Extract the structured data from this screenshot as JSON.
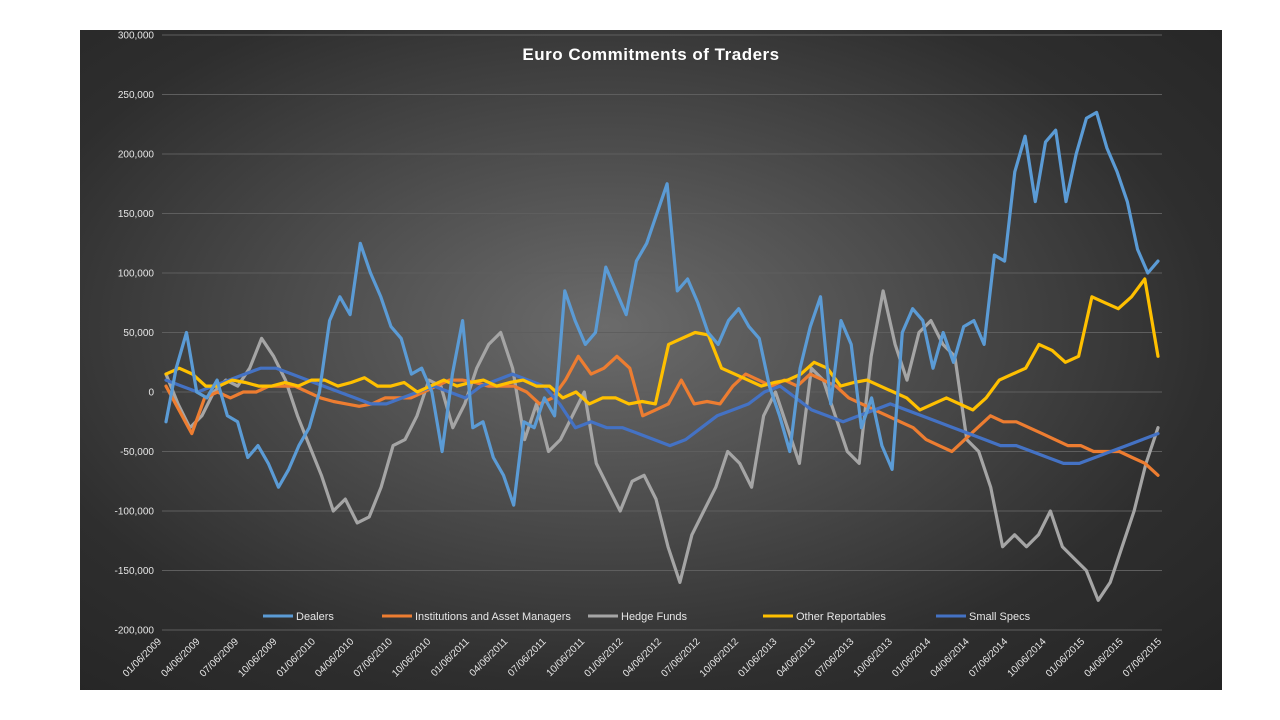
{
  "chart_data": {
    "type": "line",
    "title": "Euro  Commitments  of Traders",
    "xlabel": "",
    "ylabel": "",
    "ylim": [
      -200000,
      300000
    ],
    "yticks": [
      300000,
      250000,
      200000,
      150000,
      100000,
      50000,
      0,
      -50000,
      -100000,
      -150000,
      -200000
    ],
    "ytick_labels": [
      "300,000",
      "250,000",
      "200,000",
      "150,000",
      "100,000",
      "50,000",
      "0",
      "-50,000",
      "-100,000",
      "-150,000",
      "-200,000"
    ],
    "x_tick_labels": [
      "01/06/2009",
      "04/06/2009",
      "07/06/2009",
      "10/06/2009",
      "01/06/2010",
      "04/06/2010",
      "07/06/2010",
      "10/06/2010",
      "01/06/2011",
      "04/06/2011",
      "07/06/2011",
      "10/06/2011",
      "01/06/2012",
      "04/06/2012",
      "07/06/2012",
      "10/06/2012",
      "01/06/2013",
      "04/06/2013",
      "07/06/2013",
      "10/06/2013",
      "01/06/2014",
      "04/06/2014",
      "07/06/2014",
      "10/06/2014",
      "01/06/2015",
      "04/06/2015",
      "07/06/2015"
    ],
    "grid": true,
    "legend_position": "bottom",
    "series": [
      {
        "name": "Dealers",
        "color": "#5b9bd5",
        "values": [
          -25000,
          20000,
          50000,
          0,
          -5000,
          10000,
          -20000,
          -25000,
          -55000,
          -45000,
          -60000,
          -80000,
          -65000,
          -45000,
          -30000,
          0,
          60000,
          80000,
          65000,
          125000,
          100000,
          80000,
          55000,
          45000,
          15000,
          20000,
          0,
          -50000,
          15000,
          60000,
          -30000,
          -25000,
          -55000,
          -70000,
          -95000,
          -25000,
          -30000,
          -5000,
          -20000,
          85000,
          60000,
          40000,
          50000,
          105000,
          85000,
          65000,
          110000,
          125000,
          150000,
          175000,
          85000,
          95000,
          75000,
          50000,
          40000,
          60000,
          70000,
          55000,
          45000,
          5000,
          -20000,
          -50000,
          20000,
          55000,
          80000,
          -10000,
          60000,
          40000,
          -30000,
          -5000,
          -45000,
          -65000,
          50000,
          70000,
          60000,
          20000,
          50000,
          25000,
          55000,
          60000,
          40000,
          115000,
          110000,
          185000,
          215000,
          160000,
          210000,
          220000,
          160000,
          200000,
          230000,
          235000,
          205000,
          185000,
          160000,
          120000,
          100000,
          110000
        ]
      },
      {
        "name": "Institutions and Asset Managers",
        "color": "#ed7d31",
        "values": [
          5000,
          -15000,
          -35000,
          -5000,
          0,
          -5000,
          0,
          0,
          5000,
          5000,
          5000,
          0,
          -5000,
          -8000,
          -10000,
          -12000,
          -10000,
          -5000,
          -5000,
          -5000,
          0,
          5000,
          10000,
          10000,
          8000,
          5000,
          5000,
          5000,
          0,
          -10000,
          -5000,
          10000,
          30000,
          15000,
          20000,
          30000,
          20000,
          -20000,
          -15000,
          -10000,
          10000,
          -10000,
          -8000,
          -10000,
          5000,
          15000,
          10000,
          5000,
          10000,
          5000,
          15000,
          10000,
          5000,
          -5000,
          -10000,
          -15000,
          -20000,
          -25000,
          -30000,
          -40000,
          -45000,
          -50000,
          -40000,
          -30000,
          -20000,
          -25000,
          -25000,
          -30000,
          -35000,
          -40000,
          -45000,
          -45000,
          -50000,
          -50000,
          -50000,
          -55000,
          -60000,
          -70000
        ]
      },
      {
        "name": "Hedge Funds",
        "color": "#a5a5a5",
        "values": [
          15000,
          -10000,
          -30000,
          -20000,
          0,
          10000,
          5000,
          20000,
          45000,
          30000,
          10000,
          -20000,
          -45000,
          -70000,
          -100000,
          -90000,
          -110000,
          -105000,
          -80000,
          -45000,
          -40000,
          -20000,
          10000,
          5000,
          -30000,
          -10000,
          20000,
          40000,
          50000,
          20000,
          -40000,
          -10000,
          -50000,
          -40000,
          -20000,
          0,
          -60000,
          -80000,
          -100000,
          -75000,
          -70000,
          -90000,
          -130000,
          -160000,
          -120000,
          -100000,
          -80000,
          -50000,
          -60000,
          -80000,
          -20000,
          0,
          -30000,
          -60000,
          20000,
          10000,
          -20000,
          -50000,
          -60000,
          30000,
          85000,
          40000,
          10000,
          50000,
          60000,
          40000,
          30000,
          -40000,
          -50000,
          -80000,
          -130000,
          -120000,
          -130000,
          -120000,
          -100000,
          -130000,
          -140000,
          -150000,
          -175000,
          -160000,
          -130000,
          -100000,
          -60000,
          -30000
        ]
      },
      {
        "name": "Other Reportables",
        "color": "#ffc000",
        "values": [
          15000,
          20000,
          15000,
          5000,
          5000,
          10000,
          8000,
          5000,
          5000,
          8000,
          5000,
          10000,
          10000,
          5000,
          8000,
          12000,
          5000,
          5000,
          8000,
          0,
          5000,
          10000,
          5000,
          8000,
          10000,
          5000,
          8000,
          10000,
          5000,
          5000,
          -5000,
          0,
          -10000,
          -5000,
          -5000,
          -10000,
          -8000,
          -10000,
          40000,
          45000,
          50000,
          48000,
          20000,
          15000,
          10000,
          5000,
          8000,
          10000,
          15000,
          25000,
          20000,
          5000,
          8000,
          10000,
          5000,
          0,
          -5000,
          -15000,
          -10000,
          -5000,
          -10000,
          -15000,
          -5000,
          10000,
          15000,
          20000,
          40000,
          35000,
          25000,
          30000,
          80000,
          75000,
          70000,
          80000,
          95000,
          30000
        ]
      },
      {
        "name": "Small Specs",
        "color": "#4472c4",
        "values": [
          10000,
          5000,
          0,
          5000,
          10000,
          15000,
          20000,
          20000,
          15000,
          10000,
          5000,
          0,
          -5000,
          -10000,
          -10000,
          -5000,
          0,
          5000,
          0,
          -5000,
          5000,
          10000,
          15000,
          10000,
          5000,
          -10000,
          -30000,
          -25000,
          -30000,
          -30000,
          -35000,
          -40000,
          -45000,
          -40000,
          -30000,
          -20000,
          -15000,
          -10000,
          0,
          5000,
          -5000,
          -15000,
          -20000,
          -25000,
          -20000,
          -15000,
          -10000,
          -15000,
          -20000,
          -25000,
          -30000,
          -35000,
          -40000,
          -45000,
          -45000,
          -50000,
          -55000,
          -60000,
          -60000,
          -55000,
          -50000,
          -45000,
          -40000,
          -35000
        ]
      }
    ]
  }
}
